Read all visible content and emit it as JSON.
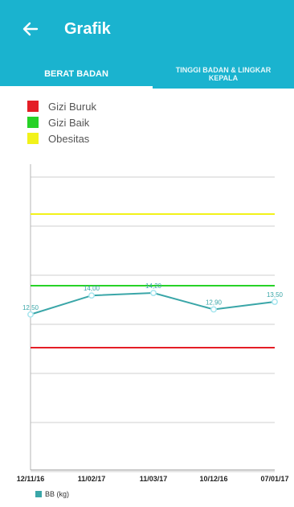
{
  "app": {
    "title": "Grafik"
  },
  "tabs": [
    {
      "label": "BERAT BADAN",
      "active": true
    },
    {
      "label": "TINGGI BADAN & LINGKAR KEPALA",
      "active": false
    }
  ],
  "legend": [
    {
      "label": "Gizi Buruk",
      "color": "#e41e26"
    },
    {
      "label": "Gizi Baik",
      "color": "#27d227"
    },
    {
      "label": "Obesitas",
      "color": "#f2f21a"
    }
  ],
  "colors": {
    "primary": "#1ab3cf",
    "series": "#3aa6a8",
    "point": "#a7e6ef"
  },
  "chart_data": {
    "type": "line",
    "categories": [
      "12/11/16",
      "11/02/17",
      "11/03/17",
      "10/12/16",
      "07/01/17"
    ],
    "series": [
      {
        "name": "BB (kg)",
        "values": [
          12.5,
          14.0,
          14.2,
          12.9,
          13.5
        ]
      }
    ],
    "reference_lines": [
      {
        "label": "Obesitas",
        "color": "#f2f21a"
      },
      {
        "label": "Gizi Baik",
        "color": "#27d227"
      },
      {
        "label": "Gizi Buruk",
        "color": "#e41e26"
      }
    ],
    "data_labels": [
      "12,50",
      "14,00",
      "14,20",
      "12,90",
      "13,50"
    ],
    "grid": true
  }
}
